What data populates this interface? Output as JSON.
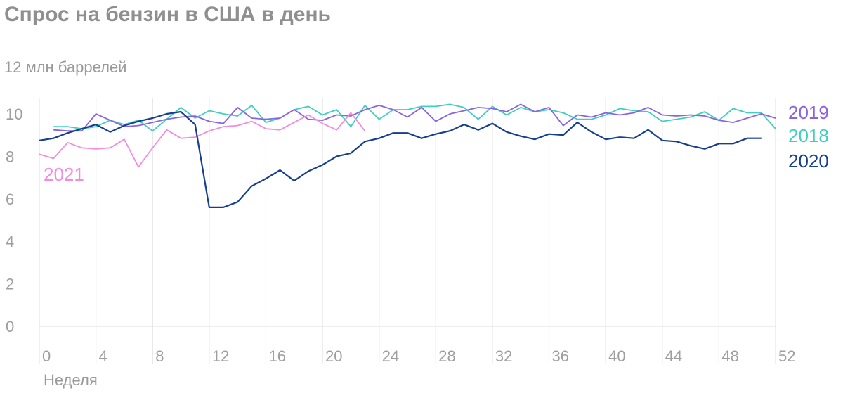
{
  "chart_data": {
    "type": "line",
    "title": "Спрос на бензин в США в день",
    "ylabel": "12 млн баррелей",
    "xlabel": "Неделя",
    "xlim": [
      0,
      52
    ],
    "ylim": [
      0,
      12
    ],
    "x_ticks": [
      0,
      4,
      8,
      12,
      16,
      20,
      24,
      28,
      32,
      36,
      40,
      44,
      48,
      52
    ],
    "y_ticks": [
      0,
      2,
      4,
      6,
      8,
      10
    ],
    "grid": "vertical",
    "series": [
      {
        "name": "2019",
        "color": "#8a63e0",
        "label_position": "right",
        "x": [
          1,
          2,
          3,
          4,
          5,
          6,
          7,
          8,
          9,
          10,
          11,
          12,
          13,
          14,
          15,
          16,
          17,
          18,
          19,
          20,
          21,
          22,
          23,
          24,
          25,
          26,
          27,
          28,
          29,
          30,
          31,
          32,
          33,
          34,
          35,
          36,
          37,
          38,
          39,
          40,
          41,
          42,
          43,
          44,
          45,
          46,
          47,
          48,
          49,
          50,
          51,
          52
        ],
        "values": [
          9.25,
          9.2,
          9.2,
          10.0,
          9.7,
          9.4,
          9.45,
          9.6,
          9.75,
          9.85,
          9.9,
          9.65,
          9.55,
          10.3,
          9.8,
          9.75,
          9.8,
          10.2,
          9.75,
          9.7,
          9.95,
          9.9,
          10.2,
          10.4,
          10.2,
          9.85,
          10.3,
          9.65,
          10.0,
          10.15,
          10.3,
          10.25,
          10.1,
          10.45,
          10.1,
          10.3,
          9.45,
          9.95,
          9.85,
          10.05,
          9.95,
          10.05,
          10.3,
          9.95,
          9.9,
          9.95,
          9.9,
          9.7,
          9.6,
          9.8,
          10.0,
          9.8
        ]
      },
      {
        "name": "2018",
        "color": "#3fcfbf",
        "label_position": "right",
        "x": [
          1,
          2,
          3,
          4,
          5,
          6,
          7,
          8,
          9,
          10,
          11,
          12,
          13,
          14,
          15,
          16,
          17,
          18,
          19,
          20,
          21,
          22,
          23,
          24,
          25,
          26,
          27,
          28,
          29,
          30,
          31,
          32,
          33,
          34,
          35,
          36,
          37,
          38,
          39,
          40,
          41,
          42,
          43,
          44,
          45,
          46,
          47,
          48,
          49,
          50,
          51,
          52
        ],
        "values": [
          9.4,
          9.4,
          9.3,
          9.4,
          9.7,
          9.5,
          9.7,
          9.2,
          9.75,
          10.3,
          9.8,
          10.15,
          10.0,
          9.9,
          10.4,
          9.6,
          9.8,
          10.2,
          10.35,
          9.95,
          10.2,
          9.4,
          10.4,
          9.75,
          10.2,
          10.2,
          10.35,
          10.35,
          10.45,
          10.3,
          9.75,
          10.35,
          9.95,
          10.3,
          10.1,
          10.2,
          10.05,
          9.75,
          9.75,
          9.95,
          10.25,
          10.15,
          10.1,
          9.65,
          9.75,
          9.85,
          10.1,
          9.7,
          10.25,
          10.05,
          10.05,
          9.3
        ]
      },
      {
        "name": "2020",
        "color": "#163f8f",
        "label_position": "right",
        "x": [
          0,
          1,
          2,
          3,
          4,
          5,
          6,
          7,
          8,
          9,
          10,
          11,
          12,
          13,
          14,
          15,
          16,
          17,
          18,
          19,
          20,
          21,
          22,
          23,
          24,
          25,
          26,
          27,
          28,
          29,
          30,
          31,
          32,
          33,
          34,
          35,
          36,
          37,
          38,
          39,
          40,
          41,
          42,
          43,
          44,
          45,
          46,
          47,
          48,
          49,
          50,
          51
        ],
        "values": [
          8.75,
          8.85,
          9.1,
          9.3,
          9.5,
          9.15,
          9.45,
          9.65,
          9.8,
          10.0,
          10.1,
          9.5,
          5.6,
          5.6,
          5.85,
          6.6,
          6.95,
          7.35,
          6.85,
          7.3,
          7.6,
          8.0,
          8.15,
          8.7,
          8.85,
          9.1,
          9.1,
          8.85,
          9.05,
          9.2,
          9.5,
          9.25,
          9.55,
          9.15,
          8.95,
          8.8,
          9.05,
          9.0,
          9.6,
          9.15,
          8.8,
          8.9,
          8.85,
          9.25,
          8.75,
          8.7,
          8.5,
          8.35,
          8.6,
          8.6,
          8.85,
          8.85
        ]
      },
      {
        "name": "2021",
        "color": "#f28ce0",
        "label_position": "left",
        "x": [
          0,
          1,
          2,
          3,
          4,
          5,
          6,
          7,
          8,
          9,
          10,
          11,
          12,
          13,
          14,
          15,
          16,
          17,
          18,
          19,
          20,
          21,
          22,
          23
        ],
        "values": [
          8.1,
          7.9,
          8.65,
          8.4,
          8.35,
          8.4,
          8.8,
          7.5,
          8.4,
          9.25,
          8.85,
          8.9,
          9.2,
          9.4,
          9.45,
          9.65,
          9.3,
          9.25,
          9.6,
          9.95,
          9.55,
          9.25,
          10.05,
          9.2
        ]
      }
    ],
    "series_labels": {
      "s2019": "2019",
      "s2018": "2018",
      "s2020": "2020",
      "s2021": "2021"
    }
  }
}
